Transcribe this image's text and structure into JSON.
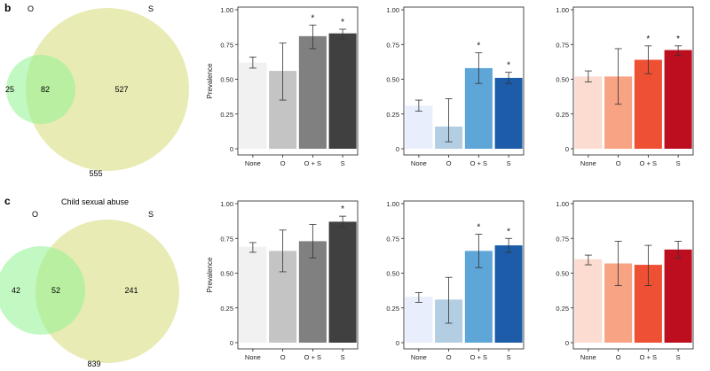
{
  "panels": [
    {
      "letter": "b",
      "venn_title": "",
      "venn": {
        "label_a": "O",
        "label_b": "S",
        "only_a": "25",
        "both": "82",
        "only_b": "527",
        "outside": "555"
      }
    },
    {
      "letter": "c",
      "venn_title": "Child sexual abuse",
      "venn": {
        "label_a": "O",
        "label_b": "S",
        "only_a": "42",
        "both": "52",
        "only_b": "241",
        "outside": "839"
      }
    }
  ],
  "yticks": [
    "0",
    "0.25",
    "0.50",
    "0.75",
    "1.00"
  ],
  "chart_data": [
    {
      "type": "bar",
      "row": 0,
      "col": 0,
      "ylabel": "Prevalence",
      "categories": [
        "None",
        "O",
        "O + S",
        "S"
      ],
      "values": [
        0.62,
        0.56,
        0.81,
        0.83
      ],
      "err_low": [
        0.58,
        0.35,
        0.72,
        0.79
      ],
      "err_high": [
        0.66,
        0.76,
        0.89,
        0.86
      ],
      "significant": [
        false,
        false,
        true,
        true
      ],
      "colors": [
        "#f1f1f1",
        "#c4c4c4",
        "#808080",
        "#404040"
      ],
      "ylim": [
        0,
        1
      ]
    },
    {
      "type": "bar",
      "row": 0,
      "col": 1,
      "ylabel": "",
      "categories": [
        "None",
        "O",
        "O + S",
        "S"
      ],
      "values": [
        0.31,
        0.16,
        0.58,
        0.51
      ],
      "err_low": [
        0.27,
        0.05,
        0.47,
        0.47
      ],
      "err_high": [
        0.35,
        0.36,
        0.69,
        0.55
      ],
      "significant": [
        false,
        false,
        true,
        true
      ],
      "colors": [
        "#e8eefb",
        "#b3cde3",
        "#5ea5d8",
        "#1c5ca8"
      ],
      "ylim": [
        0,
        1
      ]
    },
    {
      "type": "bar",
      "row": 0,
      "col": 2,
      "ylabel": "",
      "categories": [
        "None",
        "O",
        "O + S",
        "S"
      ],
      "values": [
        0.52,
        0.52,
        0.64,
        0.71
      ],
      "err_low": [
        0.48,
        0.32,
        0.54,
        0.67
      ],
      "err_high": [
        0.56,
        0.72,
        0.74,
        0.74
      ],
      "significant": [
        false,
        false,
        true,
        true
      ],
      "colors": [
        "#fcdcd0",
        "#f7a384",
        "#ee5034",
        "#bc0e1f"
      ],
      "ylim": [
        0,
        1
      ]
    },
    {
      "type": "bar",
      "row": 1,
      "col": 0,
      "ylabel": "Prevalence",
      "categories": [
        "None",
        "O",
        "O + S",
        "S"
      ],
      "values": [
        0.69,
        0.66,
        0.73,
        0.87
      ],
      "err_low": [
        0.65,
        0.51,
        0.61,
        0.83
      ],
      "err_high": [
        0.72,
        0.81,
        0.85,
        0.91
      ],
      "significant": [
        false,
        false,
        false,
        true
      ],
      "colors": [
        "#f1f1f1",
        "#c4c4c4",
        "#808080",
        "#404040"
      ],
      "ylim": [
        0,
        1
      ]
    },
    {
      "type": "bar",
      "row": 1,
      "col": 1,
      "ylabel": "",
      "categories": [
        "None",
        "O",
        "O + S",
        "S"
      ],
      "values": [
        0.33,
        0.31,
        0.66,
        0.7
      ],
      "err_low": [
        0.29,
        0.14,
        0.54,
        0.65
      ],
      "err_high": [
        0.36,
        0.47,
        0.78,
        0.75
      ],
      "significant": [
        false,
        false,
        true,
        true
      ],
      "colors": [
        "#e8eefb",
        "#b3cde3",
        "#5ea5d8",
        "#1c5ca8"
      ],
      "ylim": [
        0,
        1
      ]
    },
    {
      "type": "bar",
      "row": 1,
      "col": 2,
      "ylabel": "",
      "categories": [
        "None",
        "O",
        "O + S",
        "S"
      ],
      "values": [
        0.6,
        0.57,
        0.56,
        0.67
      ],
      "err_low": [
        0.56,
        0.41,
        0.41,
        0.61
      ],
      "err_high": [
        0.63,
        0.73,
        0.7,
        0.73
      ],
      "significant": [
        false,
        false,
        false,
        false
      ],
      "colors": [
        "#fcdcd0",
        "#f7a384",
        "#ee5034",
        "#bc0e1f"
      ],
      "ylim": [
        0,
        1
      ]
    }
  ]
}
